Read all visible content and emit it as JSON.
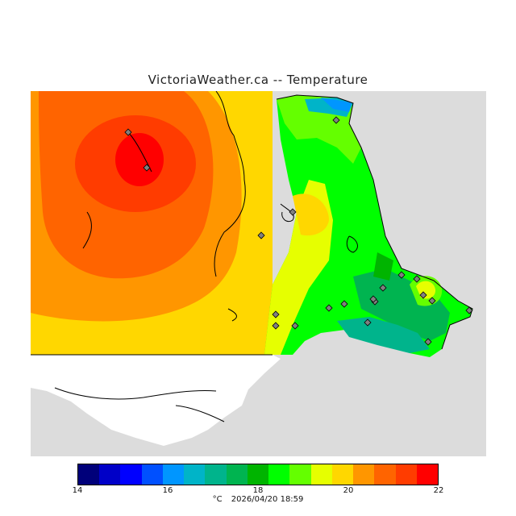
{
  "title": "VictoriaWeather.ca -- Temperature",
  "legend": {
    "unit": "°C",
    "timestamp": "2026/04/20 18:59",
    "tick_labels": [
      "14",
      "16",
      "18",
      "20",
      "22"
    ],
    "colors": [
      "#00007a",
      "#0000c8",
      "#0000ff",
      "#0050ff",
      "#0096ff",
      "#00b4c8",
      "#00b48c",
      "#00b450",
      "#00b400",
      "#00ff00",
      "#64ff00",
      "#e6ff00",
      "#ffd700",
      "#ff9600",
      "#ff6400",
      "#ff3c00",
      "#ff0000"
    ]
  },
  "palette": {
    "land_outside": "#dcdcdc",
    "water": "#ffffff",
    "coast": "#000000",
    "station_fill": "#808080"
  },
  "chart_data": {
    "type": "heatmap",
    "title": "VictoriaWeather.ca -- Temperature",
    "value_range": [
      14,
      22
    ],
    "unit": "°C",
    "stations": 20
  }
}
